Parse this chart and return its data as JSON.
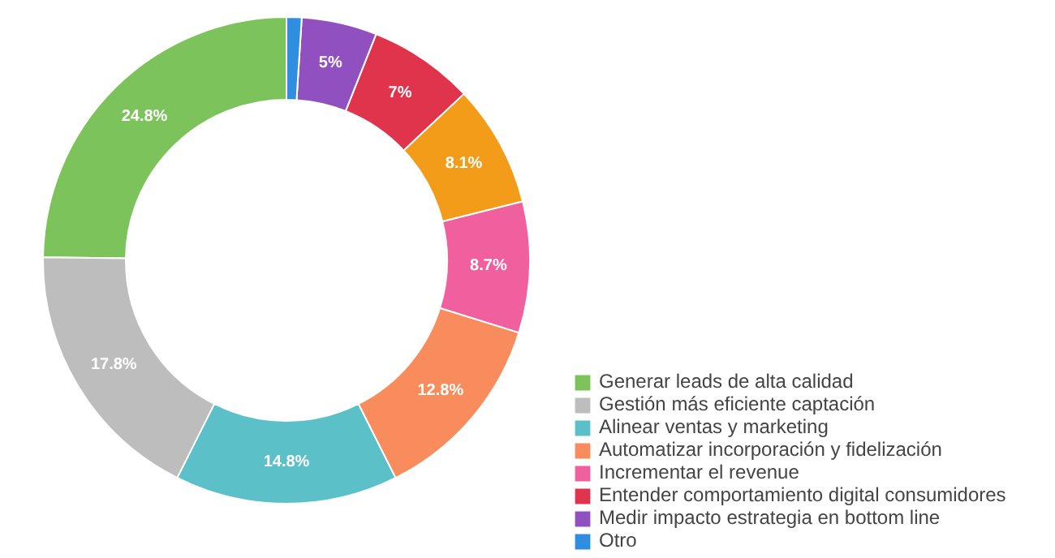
{
  "chart_data": {
    "type": "donut",
    "categories": [
      "Generar leads de alta calidad",
      "Gestión más eficiente captación",
      "Alinear ventas y marketing",
      "Automatizar incorporación y fidelización",
      "Incrementar el revenue",
      null,
      "Entender comportamiento digital consumidores",
      "Medir impacto estrategia en bottom line",
      "Otro"
    ],
    "values": [
      24.8,
      17.8,
      14.8,
      12.8,
      8.7,
      8.1,
      7,
      5,
      1.0
    ],
    "colors": [
      "#7dc35b",
      "#bdbdbd",
      "#5bc0c8",
      "#f98c5c",
      "#f0609f",
      "#f39c1a",
      "#e0344c",
      "#9150c0",
      "#2f8ee0"
    ],
    "value_labels": [
      "24.8%",
      "17.8%",
      "14.8%",
      "12.8%",
      "8.7%",
      "8.1%",
      "7%",
      "5%",
      null
    ],
    "legend": "bottom right"
  }
}
